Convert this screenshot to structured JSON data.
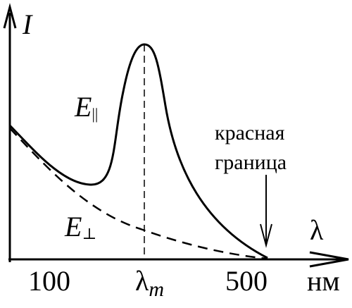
{
  "axes": {
    "y_label": "I",
    "x_label": "λ",
    "unit": "нм"
  },
  "ticks": [
    {
      "text": "100"
    },
    {
      "symbol": "λ",
      "subscript": "m"
    },
    {
      "text": "500"
    }
  ],
  "curves": [
    {
      "symbol": "E",
      "subscript": "||"
    },
    {
      "symbol": "E",
      "subscript": "⊥"
    }
  ],
  "annotation": {
    "line1": "красная",
    "line2": "граница"
  }
}
